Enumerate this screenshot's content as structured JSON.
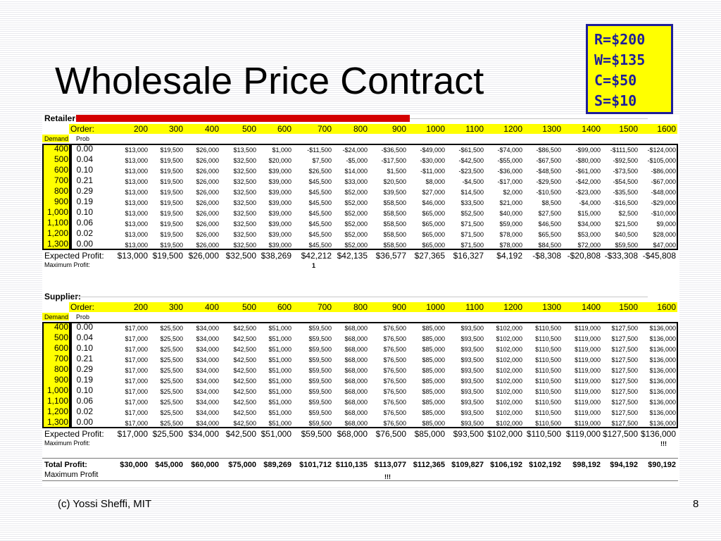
{
  "slide": {
    "title": "Wholesale Price Contract",
    "params": [
      "R=$200",
      "W=$135",
      "C=$50",
      "S=$10"
    ],
    "footer_left": "(c) Yossi Sheffi, MIT",
    "page_number": "8"
  },
  "sheet": {
    "orders": [
      "200",
      "300",
      "400",
      "500",
      "600",
      "700",
      "800",
      "900",
      "1000",
      "1100",
      "1200",
      "1300",
      "1400",
      "1500",
      "1600"
    ],
    "demands": [
      "400",
      "500",
      "600",
      "700",
      "800",
      "900",
      "1,000",
      "1,100",
      "1,200",
      "1,300"
    ],
    "probs": [
      "0.00",
      "0.04",
      "0.10",
      "0.21",
      "0.29",
      "0.19",
      "0.10",
      "0.06",
      "0.02",
      "0.00"
    ],
    "order_label": "Order:",
    "demand_label": "Demand",
    "prob_label": "Prob",
    "expected_label": "Expected Profit:",
    "max_label": "Maximum Profit:",
    "retailer": {
      "label": "Retailer:",
      "rows": [
        [
          "$13,000",
          "$19,500",
          "$26,000",
          "$13,500",
          "$1,000",
          "-$11,500",
          "-$24,000",
          "-$36,500",
          "-$49,000",
          "-$61,500",
          "-$74,000",
          "-$86,500",
          "-$99,000",
          "-$111,500",
          "-$124,000"
        ],
        [
          "$13,000",
          "$19,500",
          "$26,000",
          "$32,500",
          "$20,000",
          "$7,500",
          "-$5,000",
          "-$17,500",
          "-$30,000",
          "-$42,500",
          "-$55,000",
          "-$67,500",
          "-$80,000",
          "-$92,500",
          "-$105,000"
        ],
        [
          "$13,000",
          "$19,500",
          "$26,000",
          "$32,500",
          "$39,000",
          "$26,500",
          "$14,000",
          "$1,500",
          "-$11,000",
          "-$23,500",
          "-$36,000",
          "-$48,500",
          "-$61,000",
          "-$73,500",
          "-$86,000"
        ],
        [
          "$13,000",
          "$19,500",
          "$26,000",
          "$32,500",
          "$39,000",
          "$45,500",
          "$33,000",
          "$20,500",
          "$8,000",
          "-$4,500",
          "-$17,000",
          "-$29,500",
          "-$42,000",
          "-$54,500",
          "-$67,000"
        ],
        [
          "$13,000",
          "$19,500",
          "$26,000",
          "$32,500",
          "$39,000",
          "$45,500",
          "$52,000",
          "$39,500",
          "$27,000",
          "$14,500",
          "$2,000",
          "-$10,500",
          "-$23,000",
          "-$35,500",
          "-$48,000"
        ],
        [
          "$13,000",
          "$19,500",
          "$26,000",
          "$32,500",
          "$39,000",
          "$45,500",
          "$52,000",
          "$58,500",
          "$46,000",
          "$33,500",
          "$21,000",
          "$8,500",
          "-$4,000",
          "-$16,500",
          "-$29,000"
        ],
        [
          "$13,000",
          "$19,500",
          "$26,000",
          "$32,500",
          "$39,000",
          "$45,500",
          "$52,000",
          "$58,500",
          "$65,000",
          "$52,500",
          "$40,000",
          "$27,500",
          "$15,000",
          "$2,500",
          "-$10,000"
        ],
        [
          "$13,000",
          "$19,500",
          "$26,000",
          "$32,500",
          "$39,000",
          "$45,500",
          "$52,000",
          "$58,500",
          "$65,000",
          "$71,500",
          "$59,000",
          "$46,500",
          "$34,000",
          "$21,500",
          "$9,000"
        ],
        [
          "$13,000",
          "$19,500",
          "$26,000",
          "$32,500",
          "$39,000",
          "$45,500",
          "$52,000",
          "$58,500",
          "$65,000",
          "$71,500",
          "$78,000",
          "$65,500",
          "$53,000",
          "$40,500",
          "$28,000"
        ],
        [
          "$13,000",
          "$19,500",
          "$26,000",
          "$32,500",
          "$39,000",
          "$45,500",
          "$52,000",
          "$58,500",
          "$65,000",
          "$71,500",
          "$78,000",
          "$84,500",
          "$72,000",
          "$59,500",
          "$47,000"
        ]
      ],
      "expected": [
        "$13,000",
        "$19,500",
        "$26,000",
        "$32,500",
        "$38,269",
        "$42,212",
        "$42,135",
        "$36,577",
        "$27,365",
        "$16,327",
        "$4,192",
        "-$8,308",
        "-$20,808",
        "-$33,308",
        "-$45,808"
      ],
      "max_marker": "1"
    },
    "supplier": {
      "label": "Supplier:",
      "rows": [
        [
          "$17,000",
          "$25,500",
          "$34,000",
          "$42,500",
          "$51,000",
          "$59,500",
          "$68,000",
          "$76,500",
          "$85,000",
          "$93,500",
          "$102,000",
          "$110,500",
          "$119,000",
          "$127,500",
          "$136,000"
        ],
        [
          "$17,000",
          "$25,500",
          "$34,000",
          "$42,500",
          "$51,000",
          "$59,500",
          "$68,000",
          "$76,500",
          "$85,000",
          "$93,500",
          "$102,000",
          "$110,500",
          "$119,000",
          "$127,500",
          "$136,000"
        ],
        [
          "$17,000",
          "$25,500",
          "$34,000",
          "$42,500",
          "$51,000",
          "$59,500",
          "$68,000",
          "$76,500",
          "$85,000",
          "$93,500",
          "$102,000",
          "$110,500",
          "$119,000",
          "$127,500",
          "$136,000"
        ],
        [
          "$17,000",
          "$25,500",
          "$34,000",
          "$42,500",
          "$51,000",
          "$59,500",
          "$68,000",
          "$76,500",
          "$85,000",
          "$93,500",
          "$102,000",
          "$110,500",
          "$119,000",
          "$127,500",
          "$136,000"
        ],
        [
          "$17,000",
          "$25,500",
          "$34,000",
          "$42,500",
          "$51,000",
          "$59,500",
          "$68,000",
          "$76,500",
          "$85,000",
          "$93,500",
          "$102,000",
          "$110,500",
          "$119,000",
          "$127,500",
          "$136,000"
        ],
        [
          "$17,000",
          "$25,500",
          "$34,000",
          "$42,500",
          "$51,000",
          "$59,500",
          "$68,000",
          "$76,500",
          "$85,000",
          "$93,500",
          "$102,000",
          "$110,500",
          "$119,000",
          "$127,500",
          "$136,000"
        ],
        [
          "$17,000",
          "$25,500",
          "$34,000",
          "$42,500",
          "$51,000",
          "$59,500",
          "$68,000",
          "$76,500",
          "$85,000",
          "$93,500",
          "$102,000",
          "$110,500",
          "$119,000",
          "$127,500",
          "$136,000"
        ],
        [
          "$17,000",
          "$25,500",
          "$34,000",
          "$42,500",
          "$51,000",
          "$59,500",
          "$68,000",
          "$76,500",
          "$85,000",
          "$93,500",
          "$102,000",
          "$110,500",
          "$119,000",
          "$127,500",
          "$136,000"
        ],
        [
          "$17,000",
          "$25,500",
          "$34,000",
          "$42,500",
          "$51,000",
          "$59,500",
          "$68,000",
          "$76,500",
          "$85,000",
          "$93,500",
          "$102,000",
          "$110,500",
          "$119,000",
          "$127,500",
          "$136,000"
        ],
        [
          "$17,000",
          "$25,500",
          "$34,000",
          "$42,500",
          "$51,000",
          "$59,500",
          "$68,000",
          "$76,500",
          "$85,000",
          "$93,500",
          "$102,000",
          "$110,500",
          "$119,000",
          "$127,500",
          "$136,000"
        ]
      ],
      "expected": [
        "$17,000",
        "$25,500",
        "$34,000",
        "$42,500",
        "$51,000",
        "$59,500",
        "$68,000",
        "$76,500",
        "$85,000",
        "$93,500",
        "$102,000",
        "$110,500",
        "$119,000",
        "$127,500",
        "$136,000"
      ],
      "max_marker": "!!!"
    },
    "total": {
      "label": "Total Profit:",
      "values": [
        "$30,000",
        "$45,000",
        "$60,000",
        "$75,000",
        "$89,269",
        "$101,712",
        "$110,135",
        "$113,077",
        "$112,365",
        "$109,827",
        "$106,192",
        "$102,192",
        "$98,192",
        "$94,192",
        "$90,192"
      ],
      "max_label": "Maximum Profit",
      "max_marker": "!!!"
    }
  }
}
